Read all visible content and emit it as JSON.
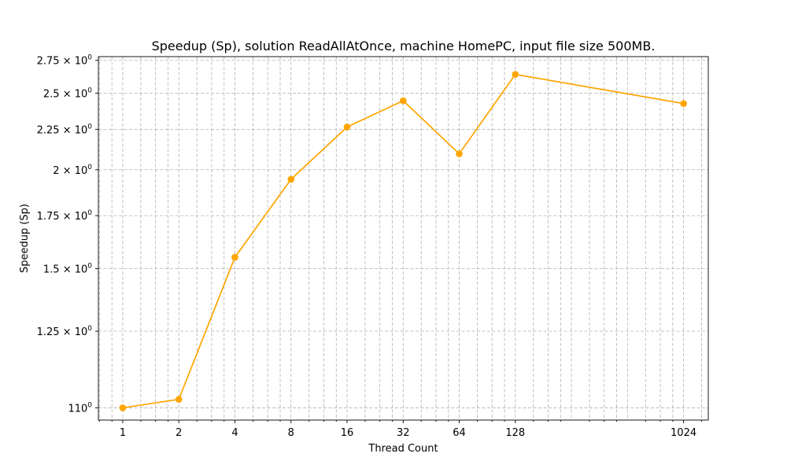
{
  "chart_data": {
    "type": "line",
    "title": "Speedup (Sp), solution ReadAllAtOnce, machine HomePC, input file size 500MB.",
    "xlabel": "Thread Count",
    "ylabel": "Speedup (Sp)",
    "x_scale": "log2",
    "y_scale": "log",
    "x": [
      1,
      2,
      4,
      8,
      16,
      32,
      64,
      128,
      1024
    ],
    "x_tick_labels": [
      "1",
      "2",
      "4",
      "8",
      "16",
      "32",
      "64",
      "128",
      "1024"
    ],
    "series": [
      {
        "values": [
          1.0,
          1.025,
          1.55,
          1.945,
          2.265,
          2.445,
          2.095,
          2.64,
          2.425
        ],
        "color": "#FFA500",
        "marker": "circle"
      }
    ],
    "xlim": [
      0.74,
      1390
    ],
    "ylim": [
      0.965,
      2.78
    ],
    "y_ticks": [
      {
        "value": 1.0,
        "mantissa": "1",
        "base": "10",
        "exp": "0"
      },
      {
        "value": 1.25,
        "mantissa": "1.25 × ",
        "base": "10",
        "exp": "0"
      },
      {
        "value": 1.5,
        "mantissa": "1.5 × ",
        "base": "10",
        "exp": "0"
      },
      {
        "value": 1.75,
        "mantissa": "1.75 × ",
        "base": "10",
        "exp": "0"
      },
      {
        "value": 2.0,
        "mantissa": "2 × ",
        "base": "10",
        "exp": "0"
      },
      {
        "value": 2.25,
        "mantissa": "2.25 × ",
        "base": "10",
        "exp": "0"
      },
      {
        "value": 2.5,
        "mantissa": "2.5 × ",
        "base": "10",
        "exp": "0"
      },
      {
        "value": 2.75,
        "mantissa": "2.75 × ",
        "base": "10",
        "exp": "0"
      }
    ],
    "grid": true
  }
}
